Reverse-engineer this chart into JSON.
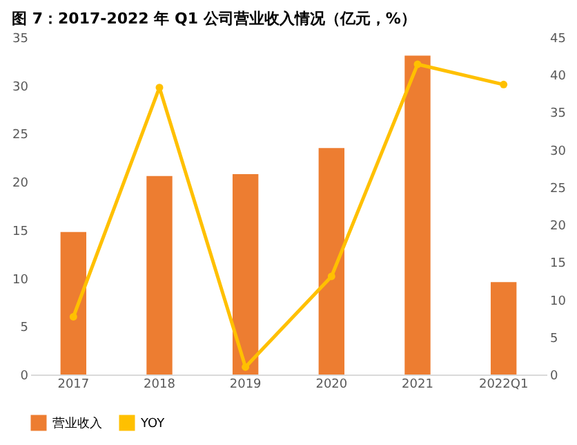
{
  "chart_data": {
    "type": "bar",
    "title": "图 7：2017-2022 年 Q1 公司营业收入情况（亿元，%）",
    "categories": [
      "2017",
      "2018",
      "2019",
      "2020",
      "2021",
      "2022Q1"
    ],
    "series": [
      {
        "name": "营业收入",
        "color": "#ed7d31",
        "values": [
          14.8,
          20.6,
          20.8,
          23.5,
          33.1,
          9.6
        ]
      },
      {
        "name": "YOY",
        "type": "line",
        "axis": "y2",
        "color": "#ffc000",
        "marker": "circle",
        "values": [
          7.7,
          38.3,
          1.0,
          13.1,
          41.4,
          38.7
        ]
      }
    ],
    "ylim": [
      0,
      35
    ],
    "yticks": [
      0,
      5,
      10,
      15,
      20,
      25,
      30,
      35
    ],
    "y2lim": [
      0,
      45
    ],
    "y2ticks": [
      0,
      5,
      10,
      15,
      20,
      25,
      30,
      35,
      40,
      45
    ],
    "grid": false,
    "legend": "bottom"
  }
}
